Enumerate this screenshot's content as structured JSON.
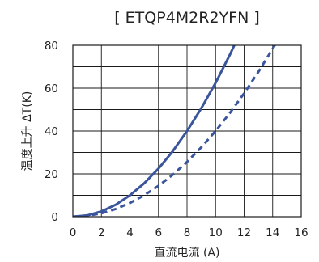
{
  "chart_data": {
    "type": "line",
    "title": "[  ETQP4M2R2YFN  ]",
    "xlabel": "直流电流 (A)",
    "ylabel": "温度上升  ΔT(K)",
    "xlim": [
      0,
      16
    ],
    "ylim": [
      0,
      80
    ],
    "x_ticks": [
      "0",
      "2",
      "4",
      "6",
      "8",
      "10",
      "12",
      "14",
      "16"
    ],
    "y_ticks": [
      "0",
      "20",
      "40",
      "60",
      "80"
    ],
    "grid": true,
    "legend": "none",
    "color": "#3a559b",
    "series": [
      {
        "style": "solid",
        "x": [
          0,
          1,
          2,
          3,
          4,
          5,
          6,
          7,
          8,
          9,
          10,
          11,
          11.5
        ],
        "y": [
          0,
          0.6,
          2.5,
          5.6,
          10,
          15.6,
          22.5,
          30.6,
          40,
          50.6,
          62.5,
          75.6,
          82.7
        ]
      },
      {
        "style": "dashed",
        "x": [
          0,
          1,
          2,
          3,
          4,
          5,
          6,
          7,
          8,
          9,
          10,
          11,
          12,
          13,
          14,
          14.5
        ],
        "y": [
          0,
          0.4,
          1.6,
          3.6,
          6.4,
          10,
          14.4,
          19.6,
          25.6,
          32.4,
          40,
          48.4,
          57.6,
          67.6,
          78.4,
          84.1
        ]
      }
    ]
  }
}
